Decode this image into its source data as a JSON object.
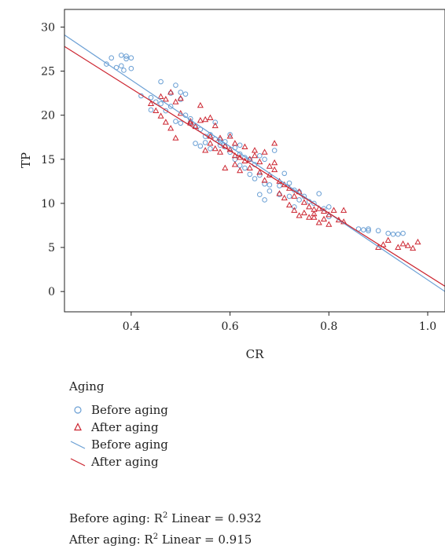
{
  "chart_data": {
    "type": "scatter",
    "xlabel": "CR",
    "ylabel": "TP",
    "xlim": [
      0.265,
      1.035
    ],
    "ylim": [
      -2.3,
      32
    ],
    "x_ticks": [
      0.4,
      0.6,
      0.8,
      1.0
    ],
    "x_tick_labels": [
      "0.4",
      "0.6",
      "0.8",
      "1.0"
    ],
    "y_ticks": [
      0,
      5,
      10,
      15,
      20,
      25,
      30
    ],
    "y_tick_labels": [
      "0",
      "5",
      "10",
      "15",
      "20",
      "25",
      "30"
    ],
    "grid": false,
    "legend_placement": "bottom",
    "legend_title": "Aging",
    "colors": {
      "before": "#6a9fd4",
      "after": "#cc2530"
    },
    "series": [
      {
        "name": "Before aging",
        "marker": "circle",
        "points": [
          [
            0.35,
            25.8
          ],
          [
            0.36,
            26.5
          ],
          [
            0.37,
            25.4
          ],
          [
            0.38,
            25.6
          ],
          [
            0.38,
            26.8
          ],
          [
            0.385,
            25.1
          ],
          [
            0.39,
            26.4
          ],
          [
            0.39,
            26.7
          ],
          [
            0.4,
            26.5
          ],
          [
            0.4,
            25.3
          ],
          [
            0.42,
            22.2
          ],
          [
            0.44,
            22.0
          ],
          [
            0.44,
            20.6
          ],
          [
            0.45,
            21.5
          ],
          [
            0.46,
            23.8
          ],
          [
            0.46,
            21.3
          ],
          [
            0.47,
            20.5
          ],
          [
            0.48,
            22.5
          ],
          [
            0.48,
            21.0
          ],
          [
            0.49,
            23.4
          ],
          [
            0.49,
            19.3
          ],
          [
            0.5,
            22.6
          ],
          [
            0.5,
            21.8
          ],
          [
            0.5,
            19.1
          ],
          [
            0.51,
            22.4
          ],
          [
            0.51,
            20.0
          ],
          [
            0.52,
            19.6
          ],
          [
            0.52,
            19.2
          ],
          [
            0.53,
            18.8
          ],
          [
            0.53,
            16.8
          ],
          [
            0.54,
            18.4
          ],
          [
            0.54,
            16.5
          ],
          [
            0.55,
            17.6
          ],
          [
            0.55,
            16.9
          ],
          [
            0.56,
            17.8
          ],
          [
            0.56,
            16.2
          ],
          [
            0.57,
            17.3
          ],
          [
            0.57,
            19.2
          ],
          [
            0.58,
            16.9
          ],
          [
            0.58,
            17.2
          ],
          [
            0.59,
            16.4
          ],
          [
            0.59,
            17.0
          ],
          [
            0.6,
            17.8
          ],
          [
            0.6,
            15.8
          ],
          [
            0.61,
            16.3
          ],
          [
            0.61,
            15.0
          ],
          [
            0.62,
            15.6
          ],
          [
            0.62,
            14.3
          ],
          [
            0.63,
            15.2
          ],
          [
            0.63,
            14.0
          ],
          [
            0.64,
            15.0
          ],
          [
            0.64,
            13.3
          ],
          [
            0.65,
            14.4
          ],
          [
            0.65,
            12.8
          ],
          [
            0.66,
            15.4
          ],
          [
            0.66,
            11.0
          ],
          [
            0.66,
            13.2
          ],
          [
            0.67,
            12.2
          ],
          [
            0.67,
            10.4
          ],
          [
            0.67,
            15.0
          ],
          [
            0.68,
            12.1
          ],
          [
            0.68,
            11.4
          ],
          [
            0.69,
            16.0
          ],
          [
            0.7,
            12.0
          ],
          [
            0.7,
            11.0
          ],
          [
            0.71,
            13.4
          ],
          [
            0.72,
            12.3
          ],
          [
            0.72,
            10.8
          ],
          [
            0.73,
            11.5
          ],
          [
            0.73,
            9.6
          ],
          [
            0.74,
            11.3
          ],
          [
            0.74,
            10.4
          ],
          [
            0.75,
            10.8
          ],
          [
            0.76,
            10.2
          ],
          [
            0.77,
            10.0
          ],
          [
            0.78,
            11.1
          ],
          [
            0.79,
            9.4
          ],
          [
            0.8,
            9.6
          ],
          [
            0.8,
            8.5
          ],
          [
            0.86,
            7.1
          ],
          [
            0.87,
            7.0
          ],
          [
            0.88,
            6.9
          ],
          [
            0.88,
            7.1
          ],
          [
            0.9,
            6.9
          ],
          [
            0.92,
            6.6
          ],
          [
            0.93,
            6.5
          ],
          [
            0.94,
            6.5
          ],
          [
            0.95,
            6.6
          ],
          [
            0.62,
            16.6
          ],
          [
            0.58,
            16.6
          ]
        ]
      },
      {
        "name": "After aging",
        "marker": "triangle",
        "points": [
          [
            0.44,
            21.3
          ],
          [
            0.45,
            20.5
          ],
          [
            0.46,
            22.1
          ],
          [
            0.46,
            19.9
          ],
          [
            0.47,
            21.8
          ],
          [
            0.47,
            19.2
          ],
          [
            0.48,
            22.6
          ],
          [
            0.48,
            18.5
          ],
          [
            0.49,
            21.5
          ],
          [
            0.49,
            17.4
          ],
          [
            0.5,
            21.9
          ],
          [
            0.5,
            20.2
          ],
          [
            0.52,
            19.1
          ],
          [
            0.53,
            18.7
          ],
          [
            0.54,
            21.1
          ],
          [
            0.54,
            19.4
          ],
          [
            0.55,
            19.5
          ],
          [
            0.55,
            16.0
          ],
          [
            0.56,
            19.7
          ],
          [
            0.56,
            16.8
          ],
          [
            0.57,
            18.8
          ],
          [
            0.57,
            16.2
          ],
          [
            0.58,
            17.4
          ],
          [
            0.58,
            15.8
          ],
          [
            0.59,
            16.5
          ],
          [
            0.59,
            14.0
          ],
          [
            0.6,
            17.6
          ],
          [
            0.6,
            16.1
          ],
          [
            0.61,
            16.8
          ],
          [
            0.61,
            15.4
          ],
          [
            0.62,
            15.2
          ],
          [
            0.62,
            13.7
          ],
          [
            0.63,
            16.4
          ],
          [
            0.63,
            14.8
          ],
          [
            0.64,
            15.0
          ],
          [
            0.64,
            14.0
          ],
          [
            0.65,
            16.0
          ],
          [
            0.65,
            15.4
          ],
          [
            0.66,
            14.7
          ],
          [
            0.66,
            13.5
          ],
          [
            0.67,
            15.8
          ],
          [
            0.67,
            12.6
          ],
          [
            0.68,
            14.2
          ],
          [
            0.68,
            13.2
          ],
          [
            0.69,
            16.8
          ],
          [
            0.69,
            13.8
          ],
          [
            0.7,
            12.5
          ],
          [
            0.7,
            11.1
          ],
          [
            0.71,
            10.6
          ],
          [
            0.71,
            12.1
          ],
          [
            0.72,
            11.7
          ],
          [
            0.72,
            9.8
          ],
          [
            0.73,
            10.8
          ],
          [
            0.73,
            9.2
          ],
          [
            0.74,
            11.3
          ],
          [
            0.74,
            8.6
          ],
          [
            0.75,
            10.1
          ],
          [
            0.75,
            8.9
          ],
          [
            0.76,
            9.6
          ],
          [
            0.76,
            8.4
          ],
          [
            0.77,
            9.3
          ],
          [
            0.77,
            8.8
          ],
          [
            0.78,
            9.4
          ],
          [
            0.78,
            7.8
          ],
          [
            0.79,
            9.1
          ],
          [
            0.79,
            8.2
          ],
          [
            0.8,
            8.7
          ],
          [
            0.8,
            7.6
          ],
          [
            0.81,
            9.2
          ],
          [
            0.82,
            8.1
          ],
          [
            0.83,
            9.2
          ],
          [
            0.83,
            7.9
          ],
          [
            0.9,
            5.0
          ],
          [
            0.91,
            5.3
          ],
          [
            0.92,
            5.8
          ],
          [
            0.94,
            5.0
          ],
          [
            0.95,
            5.4
          ],
          [
            0.96,
            5.2
          ],
          [
            0.97,
            4.9
          ],
          [
            0.98,
            5.6
          ],
          [
            0.52,
            19.3
          ],
          [
            0.56,
            17.6
          ],
          [
            0.61,
            14.4
          ],
          [
            0.69,
            14.6
          ],
          [
            0.77,
            8.4
          ]
        ]
      }
    ],
    "fit_lines": [
      {
        "name": "Before aging",
        "x": [
          0.265,
          1.035
        ],
        "y": [
          29.1,
          0.0
        ]
      },
      {
        "name": "After aging",
        "x": [
          0.265,
          1.035
        ],
        "y": [
          27.8,
          0.6
        ]
      }
    ]
  },
  "legend": {
    "title": "Aging",
    "items": [
      {
        "label": "Before aging",
        "kind": "circle"
      },
      {
        "label": "After aging",
        "kind": "triangle"
      },
      {
        "label": "Before aging",
        "kind": "line-before"
      },
      {
        "label": "After aging",
        "kind": "line-after"
      }
    ]
  },
  "stats": {
    "before_prefix": "Before aging: R",
    "before_suffix": " Linear = 0.932",
    "after_prefix": "After aging: R",
    "after_suffix": " Linear = 0.915",
    "sup": "2"
  }
}
